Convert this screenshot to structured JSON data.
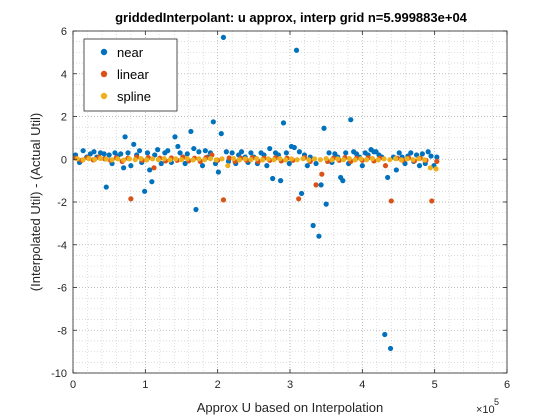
{
  "chart_data": {
    "type": "scatter",
    "title": "griddedInterpolant: u approx, interp grid n=5.999883e+04",
    "xlabel": "Approx U based on Interpolation",
    "ylabel": "(Interpolated Util) - (Actual Util)",
    "x_exponent_label": "×10",
    "x_exponent_power": "5",
    "xlim": [
      0,
      600000
    ],
    "ylim": [
      -10,
      6
    ],
    "xticks": [
      0,
      100000,
      200000,
      300000,
      400000,
      500000,
      600000
    ],
    "xtick_labels": [
      "0",
      "1",
      "2",
      "3",
      "4",
      "5",
      "6"
    ],
    "yticks": [
      -10,
      -8,
      -6,
      -4,
      -2,
      0,
      2,
      4,
      6
    ],
    "ytick_labels": [
      "-10",
      "-8",
      "-6",
      "-4",
      "-2",
      "0",
      "2",
      "4",
      "6"
    ],
    "grid": "on (major and minor dotted)",
    "legend_location": "top-left",
    "series": [
      {
        "name": "near",
        "color": "#0072BD",
        "points": [
          [
            3500,
            0.2
          ],
          [
            9000,
            -0.15
          ],
          [
            14000,
            0.4
          ],
          [
            19000,
            0.1
          ],
          [
            24000,
            0.25
          ],
          [
            29000,
            0.35
          ],
          [
            33000,
            0.1
          ],
          [
            38000,
            0.3
          ],
          [
            43000,
            0.25
          ],
          [
            46000,
            -1.3
          ],
          [
            50000,
            0.2
          ],
          [
            54000,
            -0.2
          ],
          [
            58000,
            0.3
          ],
          [
            62000,
            0.15
          ],
          [
            66000,
            0.25
          ],
          [
            70000,
            -0.4
          ],
          [
            72000,
            1.05
          ],
          [
            76000,
            0.3
          ],
          [
            80000,
            -0.3
          ],
          [
            84000,
            0.7
          ],
          [
            88000,
            0.2
          ],
          [
            92000,
            0.4
          ],
          [
            95000,
            -0.15
          ],
          [
            99000,
            -1.5
          ],
          [
            103000,
            0.3
          ],
          [
            106000,
            -0.5
          ],
          [
            109000,
            -1.05
          ],
          [
            113000,
            0.2
          ],
          [
            117000,
            0.45
          ],
          [
            122000,
            -0.2
          ],
          [
            127000,
            0.3
          ],
          [
            131000,
            0.4
          ],
          [
            136000,
            -0.15
          ],
          [
            141000,
            1.05
          ],
          [
            145000,
            0.6
          ],
          [
            148000,
            0.3
          ],
          [
            152000,
            0.1
          ],
          [
            155000,
            -0.2
          ],
          [
            158000,
            0.25
          ],
          [
            163000,
            1.3
          ],
          [
            167000,
            0.5
          ],
          [
            170000,
            -2.35
          ],
          [
            174000,
            0.35
          ],
          [
            179000,
            -0.3
          ],
          [
            183000,
            0.4
          ],
          [
            186000,
            0.1
          ],
          [
            190000,
            0.3
          ],
          [
            194000,
            1.75
          ],
          [
            197000,
            -0.2
          ],
          [
            201000,
            -0.6
          ],
          [
            205000,
            1.2
          ],
          [
            208000,
            5.7
          ],
          [
            212000,
            0.35
          ],
          [
            215000,
            -0.1
          ],
          [
            220000,
            0.3
          ],
          [
            225000,
            -0.2
          ],
          [
            229000,
            0.2
          ],
          [
            233000,
            0.35
          ],
          [
            238000,
            0.1
          ],
          [
            242000,
            -0.15
          ],
          [
            246000,
            0.3
          ],
          [
            250000,
            0.1
          ],
          [
            255000,
            -0.2
          ],
          [
            260000,
            0.3
          ],
          [
            264000,
            0.2
          ],
          [
            268000,
            -0.3
          ],
          [
            272000,
            0.5
          ],
          [
            276000,
            -0.9
          ],
          [
            280000,
            0.3
          ],
          [
            284000,
            0.2
          ],
          [
            287000,
            -1.0
          ],
          [
            291000,
            1.7
          ],
          [
            295000,
            0.3
          ],
          [
            299000,
            -0.2
          ],
          [
            302000,
            0.6
          ],
          [
            306000,
            0.55
          ],
          [
            309000,
            5.1
          ],
          [
            313000,
            0.35
          ],
          [
            316000,
            -1.6
          ],
          [
            320000,
            0.2
          ],
          [
            324000,
            -0.3
          ],
          [
            328000,
            0.1
          ],
          [
            332000,
            -3.1
          ],
          [
            336000,
            -0.2
          ],
          [
            340000,
            -3.6
          ],
          [
            343000,
            -1.2
          ],
          [
            347000,
            1.45
          ],
          [
            350000,
            -2.1
          ],
          [
            354000,
            0.3
          ],
          [
            358000,
            -0.15
          ],
          [
            362000,
            0.25
          ],
          [
            366000,
            0.1
          ],
          [
            370000,
            -0.85
          ],
          [
            373000,
            -1.0
          ],
          [
            377000,
            0.3
          ],
          [
            381000,
            -0.2
          ],
          [
            384000,
            1.85
          ],
          [
            388000,
            0.35
          ],
          [
            392000,
            0.25
          ],
          [
            396000,
            0.1
          ],
          [
            400000,
            -0.3
          ],
          [
            404000,
            0.3
          ],
          [
            408000,
            0.2
          ],
          [
            412000,
            0.45
          ],
          [
            416000,
            0.35
          ],
          [
            419000,
            0.35
          ],
          [
            423000,
            0.2
          ],
          [
            427000,
            0.1
          ],
          [
            431000,
            -8.2
          ],
          [
            435000,
            -0.85
          ],
          [
            439000,
            -8.85
          ],
          [
            443000,
            0.1
          ],
          [
            447000,
            -0.5
          ],
          [
            451000,
            0.3
          ],
          [
            455000,
            0.1
          ],
          [
            459000,
            -0.2
          ],
          [
            463000,
            0.15
          ],
          [
            467000,
            0.3
          ],
          [
            471000,
            -0.1
          ],
          [
            475000,
            0.2
          ],
          [
            479000,
            -0.3
          ],
          [
            483000,
            0.25
          ],
          [
            487000,
            -0.2
          ],
          [
            491000,
            0.35
          ],
          [
            495000,
            0.15
          ],
          [
            499000,
            -0.3
          ],
          [
            503000,
            0.1
          ]
        ]
      },
      {
        "name": "linear",
        "color": "#D95319",
        "points": [
          [
            4000,
            0.05
          ],
          [
            12000,
            -0.05
          ],
          [
            20000,
            0.08
          ],
          [
            28000,
            -0.03
          ],
          [
            36000,
            0.1
          ],
          [
            44000,
            0.02
          ],
          [
            52000,
            -0.05
          ],
          [
            60000,
            0.07
          ],
          [
            68000,
            -0.1
          ],
          [
            76000,
            0.05
          ],
          [
            80000,
            -1.85
          ],
          [
            88000,
            0.1
          ],
          [
            96000,
            -0.05
          ],
          [
            104000,
            0.08
          ],
          [
            112000,
            -0.4
          ],
          [
            120000,
            0.05
          ],
          [
            128000,
            -0.08
          ],
          [
            136000,
            0.06
          ],
          [
            144000,
            -0.05
          ],
          [
            152000,
            0.1
          ],
          [
            160000,
            -0.07
          ],
          [
            168000,
            0.05
          ],
          [
            176000,
            -0.1
          ],
          [
            184000,
            0.08
          ],
          [
            192000,
            0.2
          ],
          [
            200000,
            -0.05
          ],
          [
            208000,
            -1.9
          ],
          [
            216000,
            0.06
          ],
          [
            224000,
            -0.1
          ],
          [
            232000,
            0.05
          ],
          [
            240000,
            -0.05
          ],
          [
            248000,
            0.08
          ],
          [
            256000,
            -0.1
          ],
          [
            264000,
            0.05
          ],
          [
            272000,
            -0.05
          ],
          [
            280000,
            0.07
          ],
          [
            288000,
            -0.08
          ],
          [
            296000,
            0.05
          ],
          [
            304000,
            -0.05
          ],
          [
            312000,
            -1.85
          ],
          [
            320000,
            0.08
          ],
          [
            328000,
            -0.1
          ],
          [
            336000,
            -1.2
          ],
          [
            344000,
            -0.7
          ],
          [
            352000,
            -0.1
          ],
          [
            360000,
            0.05
          ],
          [
            368000,
            -0.05
          ],
          [
            376000,
            0.08
          ],
          [
            384000,
            -0.1
          ],
          [
            392000,
            0.05
          ],
          [
            400000,
            -0.05
          ],
          [
            408000,
            0.07
          ],
          [
            416000,
            -0.08
          ],
          [
            424000,
            0.05
          ],
          [
            432000,
            -0.3
          ],
          [
            440000,
            -1.95
          ],
          [
            448000,
            0.05
          ],
          [
            456000,
            -0.05
          ],
          [
            464000,
            0.06
          ],
          [
            472000,
            -0.08
          ],
          [
            480000,
            0.05
          ],
          [
            488000,
            -0.05
          ],
          [
            496000,
            -1.95
          ],
          [
            503000,
            -0.1
          ]
        ]
      },
      {
        "name": "spline",
        "color": "#EDB120",
        "points": [
          [
            6000,
            0.02
          ],
          [
            14000,
            -0.02
          ],
          [
            22000,
            0.03
          ],
          [
            30000,
            -0.01
          ],
          [
            38000,
            0.04
          ],
          [
            46000,
            0.01
          ],
          [
            54000,
            -0.03
          ],
          [
            62000,
            0.02
          ],
          [
            70000,
            -0.04
          ],
          [
            78000,
            0.02
          ],
          [
            86000,
            -0.02
          ],
          [
            94000,
            0.03
          ],
          [
            102000,
            -0.03
          ],
          [
            110000,
            0.02
          ],
          [
            118000,
            -0.02
          ],
          [
            126000,
            0.03
          ],
          [
            134000,
            -0.03
          ],
          [
            142000,
            0.02
          ],
          [
            150000,
            -0.02
          ],
          [
            158000,
            0.03
          ],
          [
            166000,
            -0.03
          ],
          [
            174000,
            0.02
          ],
          [
            182000,
            -0.02
          ],
          [
            190000,
            0.03
          ],
          [
            198000,
            -0.03
          ],
          [
            206000,
            0.02
          ],
          [
            214000,
            -0.3
          ],
          [
            222000,
            0.03
          ],
          [
            230000,
            -0.03
          ],
          [
            238000,
            0.02
          ],
          [
            246000,
            -0.02
          ],
          [
            254000,
            0.03
          ],
          [
            262000,
            -0.03
          ],
          [
            270000,
            0.02
          ],
          [
            278000,
            -0.02
          ],
          [
            286000,
            0.03
          ],
          [
            294000,
            -0.03
          ],
          [
            302000,
            0.02
          ],
          [
            310000,
            -0.02
          ],
          [
            318000,
            0.03
          ],
          [
            326000,
            -0.03
          ],
          [
            334000,
            0.02
          ],
          [
            342000,
            -0.02
          ],
          [
            350000,
            0.03
          ],
          [
            358000,
            -0.03
          ],
          [
            366000,
            0.02
          ],
          [
            374000,
            -0.02
          ],
          [
            382000,
            0.03
          ],
          [
            390000,
            -0.03
          ],
          [
            398000,
            0.02
          ],
          [
            406000,
            -0.02
          ],
          [
            414000,
            0.03
          ],
          [
            422000,
            -0.03
          ],
          [
            430000,
            0.02
          ],
          [
            438000,
            -0.02
          ],
          [
            446000,
            0.03
          ],
          [
            454000,
            -0.03
          ],
          [
            462000,
            0.02
          ],
          [
            470000,
            -0.02
          ],
          [
            478000,
            0.03
          ],
          [
            486000,
            -0.03
          ],
          [
            494000,
            -0.4
          ],
          [
            502000,
            -0.45
          ]
        ]
      }
    ]
  }
}
